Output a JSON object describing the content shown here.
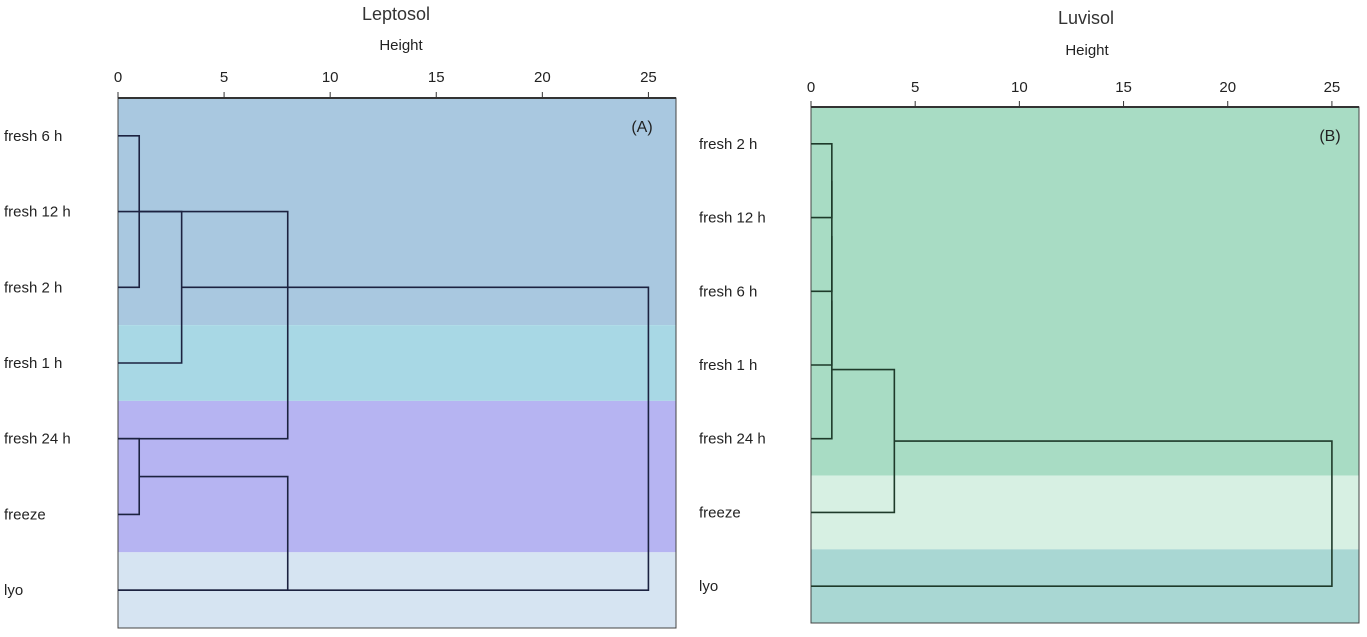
{
  "chart_data": [
    {
      "type": "dendrogram",
      "title": "Leptosol",
      "xlabel": "Height",
      "panel_tag": "(A)",
      "xlim": [
        0,
        26.3
      ],
      "xticks": [
        0,
        5,
        10,
        15,
        20,
        25
      ],
      "leaves": [
        "fresh 6 h",
        "fresh 12 h",
        "fresh 2 h",
        "fresh 1 h",
        "fresh 24 h",
        "freeze",
        "lyo"
      ],
      "merges": [
        {
          "a": 0,
          "b": 2,
          "height": 1.0
        },
        {
          "a": 4,
          "b": 5,
          "height": 1.0
        },
        {
          "a": 1,
          "b": 3,
          "height": 3.0
        },
        {
          "a": 7,
          "b": 4,
          "height": 8.0
        },
        {
          "a": 6,
          "b": 8,
          "height": 8.0
        },
        {
          "a": 9,
          "b": 6,
          "height": 25.0
        }
      ],
      "bands": [
        {
          "from": -0.5,
          "to": 2.5,
          "color": "#a9c8e0"
        },
        {
          "from": 2.5,
          "to": 3.5,
          "color": "#a8d8e5"
        },
        {
          "from": 3.5,
          "to": 5.5,
          "color": "#b6b4f2"
        },
        {
          "from": 5.5,
          "to": 6.5,
          "color": "#d6e4f2"
        }
      ],
      "line_color": "#1c2240",
      "grid": false
    },
    {
      "type": "dendrogram",
      "title": "Luvisol",
      "xlabel": "Height",
      "panel_tag": "(B)",
      "xlim": [
        0,
        26.3
      ],
      "xticks": [
        0,
        5,
        10,
        15,
        20,
        25
      ],
      "leaves": [
        "fresh 2 h",
        "fresh 12 h",
        "fresh 6 h",
        "fresh 1 h",
        "fresh 24 h",
        "freeze",
        "lyo"
      ],
      "merges": [
        {
          "a": 0,
          "b": 1,
          "height": 1.0
        },
        {
          "a": 7,
          "b": 2,
          "height": 1.0
        },
        {
          "a": 8,
          "b": 3,
          "height": 1.0
        },
        {
          "a": 9,
          "b": 4,
          "height": 1.0
        },
        {
          "a": 10,
          "b": 5,
          "height": 4.0
        },
        {
          "a": 11,
          "b": 6,
          "height": 25.0
        }
      ],
      "bands": [
        {
          "from": -0.5,
          "to": 4.5,
          "color": "#a8dcc4"
        },
        {
          "from": 4.5,
          "to": 5.5,
          "color": "#d7f0e3"
        },
        {
          "from": 5.5,
          "to": 6.5,
          "color": "#a9d7d3"
        }
      ],
      "line_color": "#1e3a2a",
      "grid": false
    }
  ]
}
